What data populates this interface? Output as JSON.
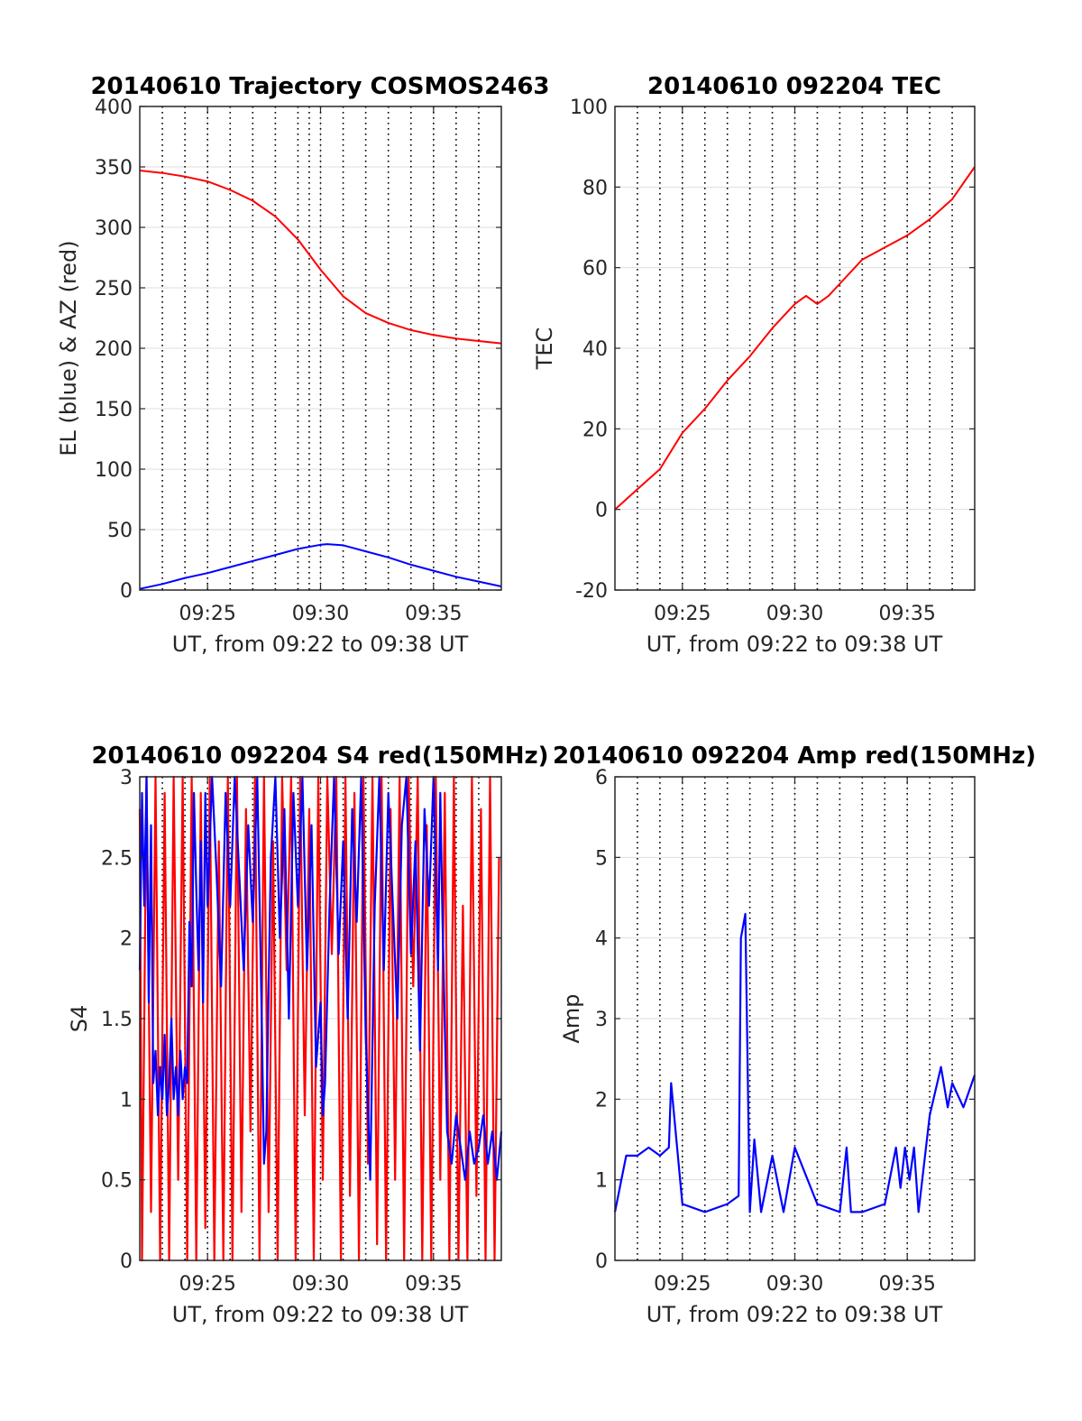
{
  "chart_data": [
    {
      "type": "line",
      "title": "20140610 Trajectory COSMOS2463",
      "xlabel": "UT, from 09:22 to 09:38 UT",
      "ylabel": "EL (blue) & AZ (red)",
      "xlim": [
        22,
        38
      ],
      "ylim": [
        0,
        400
      ],
      "x_tick_labels": [
        {
          "x": 25,
          "label": "09:25"
        },
        {
          "x": 30,
          "label": "09:30"
        },
        {
          "x": 35,
          "label": "09:35"
        }
      ],
      "y_ticks": [
        0,
        50,
        100,
        150,
        200,
        250,
        300,
        350,
        400
      ],
      "grid": "on",
      "dotted_vertical_lines": [
        23,
        24,
        25,
        26,
        27,
        28,
        29,
        29.5,
        30,
        31,
        32,
        33,
        34,
        35,
        36,
        37
      ],
      "series": [
        {
          "color": "#ff0000",
          "x": [
            22,
            23,
            24,
            25,
            26,
            27,
            28,
            29,
            30,
            31,
            32,
            33,
            34,
            35,
            36,
            37,
            38
          ],
          "values": [
            347,
            345,
            342,
            338,
            331,
            322,
            309,
            290,
            265,
            243,
            229,
            221,
            215,
            211,
            208,
            206,
            204
          ]
        },
        {
          "color": "#0000ff",
          "x": [
            22,
            23,
            24,
            25,
            26,
            27,
            28,
            29,
            30,
            30.3,
            31,
            32,
            33,
            34,
            35,
            36,
            37,
            38
          ],
          "values": [
            1,
            5,
            10,
            14,
            19,
            24,
            29,
            34,
            37.5,
            38,
            37,
            32,
            27,
            21,
            16,
            11,
            7,
            3
          ]
        }
      ]
    },
    {
      "type": "line",
      "title": "20140610 092204 TEC",
      "xlabel": "UT, from 09:22 to 09:38 UT",
      "ylabel": "TEC",
      "xlim": [
        22,
        38
      ],
      "ylim": [
        -20,
        100
      ],
      "x_tick_labels": [
        {
          "x": 25,
          "label": "09:25"
        },
        {
          "x": 30,
          "label": "09:30"
        },
        {
          "x": 35,
          "label": "09:35"
        }
      ],
      "y_ticks": [
        -20,
        0,
        20,
        40,
        60,
        80,
        100
      ],
      "grid": "on",
      "dotted_vertical_lines": [
        23,
        24,
        25,
        26,
        27,
        28,
        29,
        30,
        31,
        32,
        33,
        34,
        35,
        36,
        37
      ],
      "series": [
        {
          "color": "#ff0000",
          "x": [
            22,
            23,
            24,
            25,
            26,
            27,
            28,
            29,
            29.5,
            30,
            30.5,
            31,
            31.5,
            32,
            33,
            34,
            35,
            36,
            37,
            38
          ],
          "values": [
            0,
            5,
            10,
            19,
            25,
            32,
            38,
            45,
            48,
            51,
            53,
            51,
            53,
            56,
            62,
            65,
            68,
            72,
            77,
            85
          ]
        }
      ]
    },
    {
      "type": "line",
      "title": "20140610 092204 S4 red(150MHz)",
      "xlabel": "UT, from 09:22 to 09:38 UT",
      "ylabel": "S4",
      "xlim": [
        22,
        38
      ],
      "ylim": [
        0,
        3
      ],
      "x_tick_labels": [
        {
          "x": 25,
          "label": "09:25"
        },
        {
          "x": 30,
          "label": "09:30"
        },
        {
          "x": 35,
          "label": "09:35"
        }
      ],
      "y_ticks": [
        0,
        0.5,
        1,
        1.5,
        2,
        2.5,
        3
      ],
      "y_tick_labels": [
        "0",
        "0.5",
        "1",
        "1.5",
        "2",
        "2.5",
        "3"
      ],
      "grid": "on",
      "dotted_vertical_lines": [
        23,
        24,
        25,
        26,
        27,
        28,
        29,
        30,
        31,
        32,
        33,
        34,
        35,
        36,
        37
      ],
      "series": [
        {
          "color": "#ff0000",
          "x": [
            22,
            22.1,
            22.3,
            22.5,
            22.7,
            22.9,
            23.1,
            23.3,
            23.5,
            23.7,
            23.9,
            24.1,
            24.3,
            24.5,
            24.7,
            24.9,
            25.1,
            25.3,
            25.5,
            25.7,
            25.9,
            26.1,
            26.3,
            26.5,
            26.7,
            26.9,
            27.1,
            27.3,
            27.5,
            27.7,
            27.9,
            28.1,
            28.3,
            28.5,
            28.7,
            28.9,
            29.1,
            29.3,
            29.5,
            29.7,
            29.9,
            30.1,
            30.3,
            30.5,
            30.7,
            30.9,
            31.1,
            31.3,
            31.5,
            31.7,
            31.9,
            32.1,
            32.3,
            32.5,
            32.7,
            32.9,
            33.1,
            33.3,
            33.5,
            33.7,
            33.9,
            34.1,
            34.3,
            34.5,
            34.7,
            34.9,
            35.1,
            35.3,
            35.5,
            35.7,
            35.9,
            36.1,
            36.3,
            36.5,
            36.7,
            36.9,
            37.1,
            37.3,
            37.5,
            37.7,
            37.9
          ],
          "values": [
            2.8,
            0,
            3,
            0.3,
            3,
            0,
            2.9,
            0,
            3,
            0.5,
            3,
            0,
            3,
            0,
            2.9,
            0.2,
            3,
            0,
            2.6,
            0,
            3,
            0,
            3,
            0.3,
            2.8,
            0.8,
            3,
            0,
            3,
            0.3,
            2.6,
            0,
            3,
            1.8,
            3,
            0,
            3,
            0.9,
            2.8,
            0,
            3,
            0.5,
            3,
            1.9,
            3,
            0,
            3,
            0.4,
            2.9,
            0,
            3,
            0.6,
            3,
            0.1,
            3,
            0,
            2.8,
            0.5,
            3,
            0,
            3,
            1.7,
            3,
            0,
            2.7,
            0,
            3,
            0.5,
            2.9,
            0,
            3,
            0,
            2.2,
            0,
            3,
            0.4,
            2.8,
            0,
            3,
            0,
            2.5
          ]
        },
        {
          "color": "#0000ff",
          "x": [
            22,
            22.1,
            22.2,
            22.3,
            22.4,
            22.5,
            22.6,
            22.7,
            22.8,
            22.9,
            23.0,
            23.1,
            23.2,
            23.3,
            23.4,
            23.5,
            23.6,
            23.7,
            23.8,
            23.9,
            24.0,
            24.1,
            24.2,
            24.3,
            24.4,
            24.5,
            24.6,
            24.7,
            24.8,
            24.9,
            25.0,
            25.2,
            25.4,
            25.6,
            25.8,
            26.0,
            26.2,
            26.4,
            26.6,
            26.8,
            27.0,
            27.2,
            27.4,
            27.5,
            27.6,
            27.7,
            27.8,
            28.0,
            28.2,
            28.4,
            28.6,
            28.8,
            29.0,
            29.2,
            29.4,
            29.6,
            29.8,
            30.0,
            30.1,
            30.2,
            30.4,
            30.6,
            30.8,
            31.0,
            31.2,
            31.4,
            31.6,
            31.8,
            32.0,
            32.2,
            32.4,
            32.6,
            32.8,
            33.0,
            33.2,
            33.4,
            33.6,
            33.8,
            34.0,
            34.2,
            34.4,
            34.6,
            34.8,
            35.0,
            35.1,
            35.2,
            35.3,
            35.4,
            35.6,
            35.8,
            36.0,
            36.2,
            36.4,
            36.6,
            36.8,
            37.0,
            37.2,
            37.4,
            37.6,
            37.8,
            38.0
          ],
          "values": [
            1.8,
            2.9,
            2.2,
            3,
            1.6,
            2.7,
            1.1,
            1.3,
            0.9,
            1.2,
            1.0,
            1.4,
            0.9,
            1.1,
            1.5,
            1.0,
            1.2,
            0.9,
            1.3,
            1.0,
            1.2,
            1.1,
            2.1,
            1.7,
            2.9,
            2.3,
            1.8,
            2.6,
            1.6,
            2.9,
            2.2,
            3,
            2.4,
            1.7,
            2.9,
            2.2,
            3,
            2.4,
            1.8,
            2.7,
            2.1,
            3,
            1.5,
            0.6,
            0.8,
            1.7,
            2.5,
            3,
            2.0,
            2.8,
            1.5,
            2.9,
            2.2,
            3,
            1.8,
            2.7,
            1.2,
            1.6,
            0.9,
            1.1,
            2.2,
            3,
            1.9,
            2.6,
            1.5,
            2.8,
            2.1,
            3,
            1.4,
            0.5,
            2.2,
            3,
            1.8,
            2.9,
            2.2,
            1.5,
            2.7,
            3,
            1.9,
            2.6,
            1.3,
            2.8,
            2.2,
            3,
            2.4,
            1.8,
            2.9,
            2.1,
            0.8,
            0.6,
            0.9,
            0.7,
            0.5,
            0.8,
            0.6,
            0.7,
            0.9,
            0.6,
            0.8,
            0.5,
            0.8
          ]
        }
      ]
    },
    {
      "type": "line",
      "title": "20140610 092204 Amp red(150MHz)",
      "xlabel": "UT, from 09:22 to 09:38 UT",
      "ylabel": "Amp",
      "xlim": [
        22,
        38
      ],
      "ylim": [
        0,
        6
      ],
      "x_tick_labels": [
        {
          "x": 25,
          "label": "09:25"
        },
        {
          "x": 30,
          "label": "09:30"
        },
        {
          "x": 35,
          "label": "09:35"
        }
      ],
      "y_ticks": [
        0,
        1,
        2,
        3,
        4,
        5,
        6
      ],
      "grid": "on",
      "dotted_vertical_lines": [
        23,
        24,
        25,
        26,
        27,
        28,
        29,
        30,
        31,
        32,
        33,
        34,
        35,
        36,
        37
      ],
      "series": [
        {
          "color": "#0000ff",
          "x": [
            22,
            22.5,
            23,
            23.5,
            24,
            24.4,
            24.5,
            25,
            26,
            27,
            27.5,
            27.6,
            27.8,
            28.0,
            28.2,
            28.5,
            29,
            29.5,
            30,
            31,
            32,
            32.3,
            32.5,
            33,
            34,
            34.5,
            34.7,
            34.9,
            35.1,
            35.3,
            35.5,
            36,
            36.5,
            36.8,
            37,
            37.5,
            38
          ],
          "values": [
            0.6,
            1.3,
            1.3,
            1.4,
            1.3,
            1.4,
            2.2,
            0.7,
            0.6,
            0.7,
            0.8,
            4.0,
            4.3,
            0.6,
            1.5,
            0.6,
            1.3,
            0.6,
            1.4,
            0.7,
            0.6,
            1.4,
            0.6,
            0.6,
            0.7,
            1.4,
            0.9,
            1.4,
            1.0,
            1.4,
            0.6,
            1.8,
            2.4,
            1.9,
            2.2,
            1.9,
            2.3
          ]
        }
      ]
    }
  ]
}
